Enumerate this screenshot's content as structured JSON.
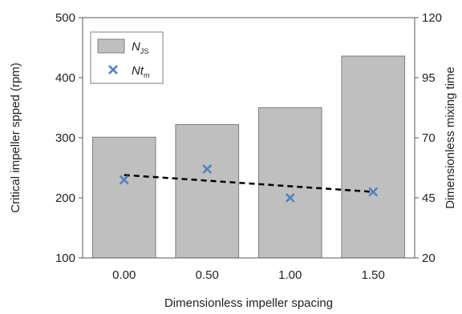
{
  "chart_data": {
    "type": "bar",
    "categories": [
      "0.00",
      "0.50",
      "1.00",
      "1.50"
    ],
    "xlabel": "Dimensionless impeller spacing",
    "ylabel": "Critical impeller spped (rpm)",
    "y2label": "Dimensionless mixing time",
    "ylim": [
      100,
      500
    ],
    "yticks": [
      "100",
      "200",
      "300",
      "400",
      "500"
    ],
    "y2lim": [
      20,
      120
    ],
    "y2ticks": [
      "20",
      "45",
      "70",
      "95",
      "120"
    ],
    "grid": false,
    "legend_placement": "top-left",
    "series": [
      {
        "name": "N",
        "name_sub": "JS",
        "kind": "bar",
        "axis": "left",
        "color": "#bfbfbf",
        "values": [
          301,
          322,
          350,
          436
        ]
      },
      {
        "name": "Nt",
        "name_sub": "m",
        "kind": "scatter",
        "axis": "right",
        "marker": "x",
        "color": "#4f81bd",
        "values": [
          52.5,
          57,
          45,
          47.5
        ]
      }
    ],
    "trendline": {
      "axis": "right",
      "style": "dashed",
      "color": "#000000",
      "start": 54.5,
      "end": 47.5
    }
  }
}
